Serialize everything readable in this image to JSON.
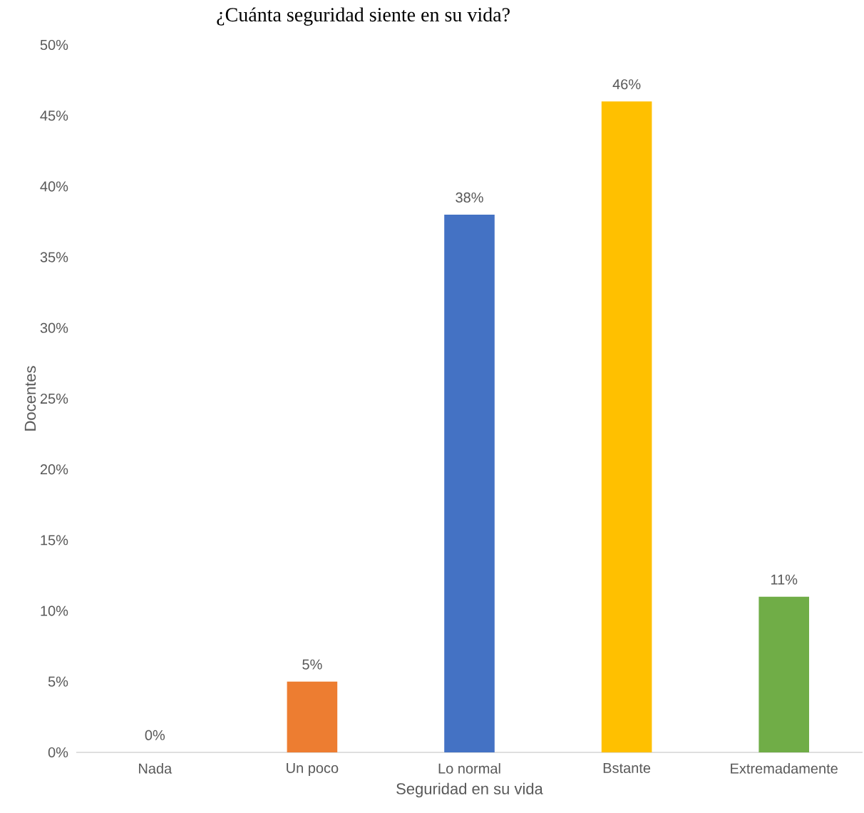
{
  "chart_data": {
    "type": "bar",
    "title": "¿Cuánta seguridad siente en su vida?",
    "xlabel": "Seguridad en su vida",
    "ylabel": "Docentes",
    "categories": [
      "Nada",
      "Un poco",
      "Lo normal",
      "Bstante",
      "Extremadamente"
    ],
    "values": [
      0,
      5,
      38,
      46,
      11
    ],
    "colors": [
      "#5b9bd5",
      "#ed7d31",
      "#4472c4",
      "#ffc000",
      "#70ad47"
    ],
    "value_labels": [
      "0%",
      "5%",
      "38%",
      "46%",
      "11%"
    ],
    "ylim": [
      0,
      50
    ],
    "yticks": [
      {
        "value": 0,
        "label": "0%"
      },
      {
        "value": 5,
        "label": "5%"
      },
      {
        "value": 10,
        "label": "10%"
      },
      {
        "value": 15,
        "label": "15%"
      },
      {
        "value": 20,
        "label": "20%"
      },
      {
        "value": 25,
        "label": "25%"
      },
      {
        "value": 30,
        "label": "30%"
      },
      {
        "value": 35,
        "label": "35%"
      },
      {
        "value": 40,
        "label": "40%"
      },
      {
        "value": 45,
        "label": "45%"
      },
      {
        "value": 50,
        "label": "50%"
      }
    ]
  }
}
